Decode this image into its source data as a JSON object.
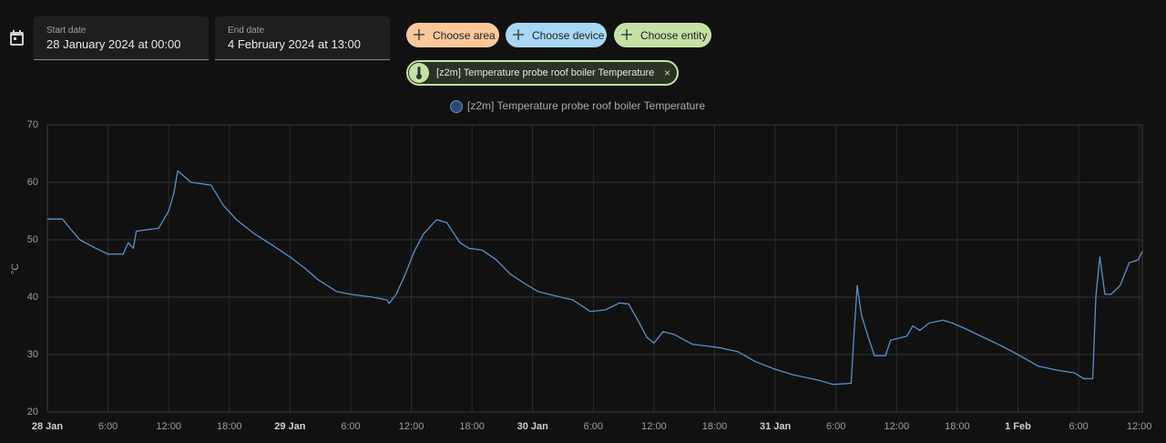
{
  "date_picker": {
    "start_label": "Start date",
    "start_value": "28 January 2024 at 00:00",
    "end_label": "End date",
    "end_value": "4 February 2024 at 13:00"
  },
  "targets": {
    "buttons": [
      "Choose area",
      "Choose device",
      "Choose entity"
    ],
    "chips": [
      "[z2m] Temperature probe roof boiler Temperature"
    ]
  },
  "chart_data": {
    "type": "line",
    "y_label": "°C",
    "x": [
      0,
      1.5,
      2,
      3.2,
      4.8,
      6,
      7.5,
      8,
      8.5,
      8.8,
      11,
      12,
      12.5,
      12.9,
      14.2,
      16.2,
      17.4,
      18.7,
      20.5,
      22.3,
      24,
      25.5,
      26.8,
      28.6,
      30,
      32.2,
      33.6,
      33.8,
      34.5,
      35.4,
      36.3,
      37.2,
      38.5,
      39.5,
      40.8,
      41.7,
      43,
      44.4,
      45.8,
      47.1,
      48.5,
      50.3,
      52,
      53.7,
      55.2,
      56.6,
      57.5,
      58.4,
      59.3,
      60,
      60.9,
      62,
      63.8,
      66.5,
      68.3,
      70,
      71.9,
      73.7,
      76.4,
      77.7,
      79.5,
      79.8,
      80.1,
      80.5,
      81.2,
      81.8,
      82.9,
      83.4,
      85,
      85.6,
      86.3,
      87.2,
      88.6,
      89.5,
      90.8,
      92.6,
      94.4,
      96.2,
      98,
      99.8,
      101.6,
      102.5,
      103.4,
      103.7,
      104.1,
      104.6,
      105.2,
      106.1,
      107,
      107.9,
      108.3
    ],
    "series": [
      {
        "name": "[z2m] Temperature probe roof boiler Temperature",
        "color": "#5b8fc7",
        "values": [
          53.6,
          53.6,
          52.5,
          50,
          48.5,
          47.5,
          47.5,
          49.5,
          48.5,
          51.5,
          52,
          55,
          58,
          62,
          60,
          59.5,
          56,
          53.5,
          51,
          49,
          47,
          45,
          43,
          41,
          40.5,
          40,
          39.5,
          38.9,
          40.5,
          44,
          48,
          51,
          53.5,
          53,
          49.5,
          48.5,
          48.2,
          46.5,
          44,
          42.5,
          41,
          40.2,
          39.5,
          37.5,
          37.8,
          39,
          38.8,
          36,
          33,
          32,
          34,
          33.5,
          31.8,
          31.2,
          30.5,
          28.8,
          27.5,
          26.5,
          25.5,
          24.8,
          25,
          34,
          42,
          37,
          33,
          29.8,
          29.8,
          32.5,
          33.2,
          35,
          34.2,
          35.5,
          36,
          35.5,
          34.5,
          33,
          31.5,
          29.8,
          28,
          27.3,
          26.8,
          25.8,
          25.8,
          40,
          47,
          40.5,
          40.5,
          42,
          46,
          46.5,
          48
        ]
      }
    ],
    "xlim": [
      0,
      108.3
    ],
    "xticks": [
      {
        "value": 0,
        "label": "28 Jan"
      },
      {
        "value": 6,
        "label": "6:00"
      },
      {
        "value": 12,
        "label": "12:00"
      },
      {
        "value": 18,
        "label": "18:00"
      },
      {
        "value": 24,
        "label": "29 Jan"
      },
      {
        "value": 30,
        "label": "6:00"
      },
      {
        "value": 36,
        "label": "12:00"
      },
      {
        "value": 42,
        "label": "18:00"
      },
      {
        "value": 48,
        "label": "30 Jan"
      },
      {
        "value": 54,
        "label": "6:00"
      },
      {
        "value": 60,
        "label": "12:00"
      },
      {
        "value": 66,
        "label": "18:00"
      },
      {
        "value": 72,
        "label": "31 Jan"
      },
      {
        "value": 78,
        "label": "6:00"
      },
      {
        "value": 84,
        "label": "12:00"
      },
      {
        "value": 90,
        "label": "18:00"
      },
      {
        "value": 96,
        "label": "1 Feb"
      },
      {
        "value": 102,
        "label": "6:00"
      },
      {
        "value": 108,
        "label": "12:00"
      }
    ],
    "ylim": [
      20,
      70
    ],
    "yticks": [
      20,
      30,
      40,
      50,
      60,
      70
    ],
    "grid": true
  }
}
